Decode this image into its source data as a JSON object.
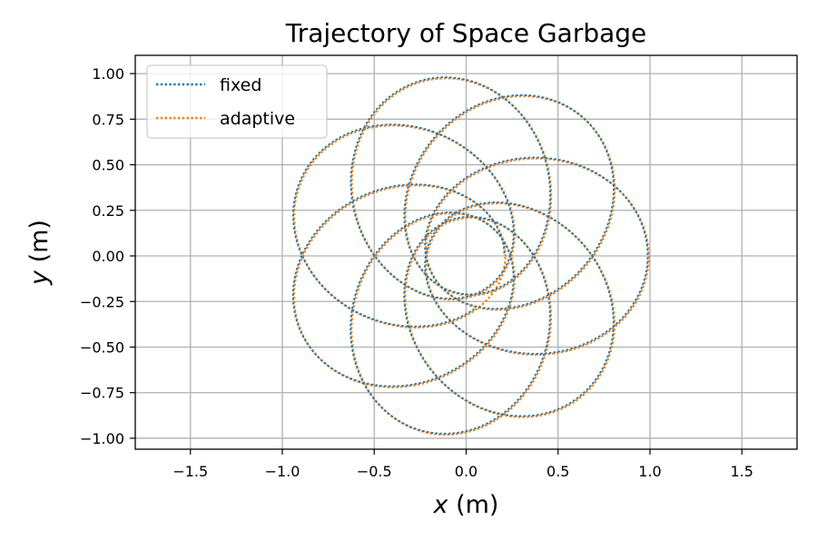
{
  "chart_data": {
    "type": "line",
    "title": "Trajectory of Space Garbage",
    "xlabel": {
      "symbol": "x",
      "unit": " (m)"
    },
    "ylabel": {
      "symbol": "y",
      "unit": " (m)"
    },
    "xlim": [
      -1.8,
      1.8
    ],
    "ylim": [
      -1.06,
      1.1
    ],
    "x_ticks": [
      -1.5,
      -1.0,
      -0.5,
      0.0,
      0.5,
      1.0,
      1.5
    ],
    "x_tick_labels": [
      "−1.5",
      "−1.0",
      "−0.5",
      "0.0",
      "0.5",
      "1.0",
      "1.5"
    ],
    "y_ticks": [
      1.0,
      0.75,
      0.5,
      0.25,
      0.0,
      -0.25,
      -0.5,
      -0.75,
      -1.0
    ],
    "y_tick_labels": [
      "1.00",
      "0.75",
      "0.50",
      "0.25",
      "0.00",
      "−0.25",
      "−0.50",
      "−0.75",
      "−1.00"
    ],
    "grid": true,
    "legend_position": "top-left",
    "curve": {
      "description": "precessing ellipse (rosette) traced by both integrators",
      "semi_major_axis": 0.6,
      "eccentricity": 0.65,
      "rotations": 7,
      "precession_per_orbit_deg": 51.4,
      "initial_x": 1.0,
      "initial_y": 0.0,
      "final_x": 0.96,
      "final_y": 0.23
    },
    "series": [
      {
        "name": "fixed",
        "color": "#1f77b4",
        "style": "dotted"
      },
      {
        "name": "adaptive",
        "color": "#ff7f0e",
        "style": "dotted"
      }
    ]
  }
}
